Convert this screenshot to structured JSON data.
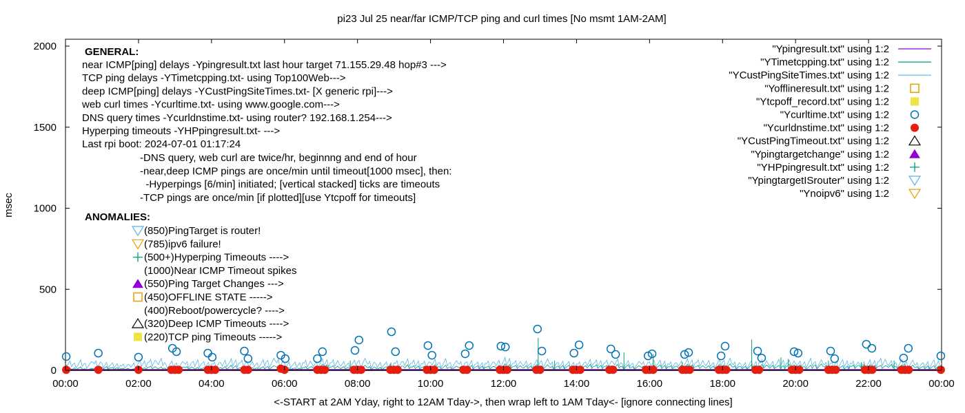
{
  "chart_data": {
    "type": "line",
    "title": "pi23 Jul 25  near/far ICMP/TCP ping and curl times [No msmt 1AM-2AM]",
    "xlabel": "<-START at 2AM Yday, right to 12AM Tday->, then wrap left to 1AM Tday<- [ignore connecting lines]",
    "ylabel": "msec",
    "xlim_hours": [
      0,
      24
    ],
    "ylim": [
      0,
      2050
    ],
    "x_ticks": [
      "00:00",
      "02:00",
      "04:00",
      "06:00",
      "08:00",
      "10:00",
      "12:00",
      "14:00",
      "16:00",
      "18:00",
      "20:00",
      "22:00",
      "00:00"
    ],
    "y_ticks": [
      "0",
      "500",
      "1000",
      "1500",
      "2000"
    ],
    "grid": false,
    "legend_placement": "top-right",
    "legend": [
      {
        "label": "\"Ypingresult.txt\" using 1:2",
        "style": "line",
        "color": "#9400d3"
      },
      {
        "label": "\"YTimetcpping.txt\" using 1:2",
        "style": "line",
        "color": "#009e73"
      },
      {
        "label": "\"YCustPingSiteTimes.txt\" using 1:2",
        "style": "line",
        "color": "#56b4e9"
      },
      {
        "label": "\"Yofflineresult.txt\" using 1:2",
        "style": "open-square",
        "color": "#e69f00"
      },
      {
        "label": "\"Ytcpoff_record.txt\" using 1:2",
        "style": "filled-square",
        "color": "#f0e442"
      },
      {
        "label": "\"Ycurltime.txt\" using 1:2",
        "style": "open-circle",
        "color": "#0072b2"
      },
      {
        "label": "\"Ycurldnstime.txt\" using 1:2",
        "style": "filled-circle",
        "color": "#e51e10"
      },
      {
        "label": "\"YCustPingTimeout.txt\" using 1:2",
        "style": "open-triangle",
        "color": "#000000"
      },
      {
        "label": "\"Ypingtargetchange\" using 1:2",
        "style": "filled-triangle",
        "color": "#9400d3"
      },
      {
        "label": "\"YHPpingresult.txt\" using 1:2",
        "style": "plus",
        "color": "#009e73"
      },
      {
        "label": "\"YpingtargetISrouter\" using 1:2",
        "style": "open-down-triangle",
        "color": "#56b4e9"
      },
      {
        "label": "\"Ynoipv6\" using 1:2",
        "style": "open-down-triangle",
        "color": "#e69f00"
      }
    ],
    "general_notes": {
      "heading": "GENERAL:",
      "lines": [
        "near ICMP[ping] delays -Ypingresult.txt last hour target 71.155.29.48 hop#3 --->",
        "TCP ping delays -YTimetcpping.txt- using Top100Web--->",
        "deep ICMP[ping] delays -YCustPingSiteTimes.txt- [X generic rpi]--->",
        "web curl times -Ycurltime.txt- using www.google.com--->",
        "DNS query times -Ycurldnstime.txt- using router? 192.168.1.254--->",
        "Hyperping timeouts -YHPpingresult.txt- --->",
        "Last rpi boot: 2024-07-01 01:17:24"
      ],
      "indented_lines": [
        "-DNS query, web curl are twice/hr, beginnng and end of hour",
        "-near,deep ICMP pings are once/min until timeout[1000 msec], then:",
        "  -Hyperpings [6/min] initiated; [vertical stacked] ticks are timeouts",
        "-TCP pings are once/min [if plotted][use Ytcpoff for timeouts]"
      ]
    },
    "anomalies": {
      "heading": "ANOMALIES:",
      "items": [
        {
          "text": "(850)PingTarget is router!",
          "symbol": "open-down-triangle",
          "color": "#56b4e9"
        },
        {
          "text": "(785)ipv6 failure!",
          "symbol": "open-down-triangle",
          "color": "#e69f00"
        },
        {
          "text": "(500+)Hyperping Timeouts ---->",
          "symbol": "plus",
          "color": "#009e73"
        },
        {
          "text": "(1000)Near ICMP Timeout spikes",
          "symbol": "none",
          "color": ""
        },
        {
          "text": "(550)Ping Target Changes --->",
          "symbol": "filled-triangle",
          "color": "#9400d3"
        },
        {
          "text": "(450)OFFLINE STATE ----->",
          "symbol": "open-square",
          "color": "#e69f00"
        },
        {
          "text": "(400)Reboot/powercycle? ---->",
          "symbol": "none",
          "color": ""
        },
        {
          "text": "(320)Deep ICMP Timeouts ---->",
          "symbol": "open-triangle",
          "color": "#000000"
        },
        {
          "text": "(220)TCP ping Timeouts ----->",
          "symbol": "filled-square",
          "color": "#f0e442"
        }
      ]
    },
    "series": {
      "curltime": {
        "x": [
          0.02,
          0.9,
          2.0,
          2.93,
          3.04,
          3.9,
          4.02,
          4.9,
          5.0,
          5.9,
          6.02,
          6.9,
          7.04,
          7.93,
          8.04,
          8.93,
          9.04,
          9.93,
          10.04,
          10.95,
          11.06,
          11.93,
          12.05,
          12.93,
          13.05,
          13.93,
          14.07,
          14.94,
          15.07,
          15.96,
          16.07,
          16.96,
          17.07,
          17.96,
          18.07,
          18.96,
          19.07,
          19.96,
          20.07,
          20.96,
          21.07,
          21.94,
          22.09,
          22.96,
          23.09,
          23.98
        ],
        "y": [
          85,
          106,
          81,
          136,
          115,
          106,
          81,
          119,
          72,
          93,
          72,
          72,
          115,
          123,
          187,
          238,
          115,
          153,
          93,
          102,
          153,
          149,
          144,
          255,
          119,
          106,
          157,
          132,
          98,
          89,
          102,
          98,
          110,
          89,
          149,
          119,
          76,
          115,
          106,
          119,
          72,
          161,
          136,
          76,
          136,
          89
        ]
      },
      "curldnstime": {
        "x": [
          0.02,
          0.9,
          2.0,
          2.9,
          3.0,
          3.1,
          3.9,
          4.0,
          4.1,
          4.9,
          5.0,
          5.9,
          6.0,
          6.9,
          7.0,
          7.1,
          7.9,
          8.0,
          8.1,
          8.9,
          9.0,
          9.1,
          9.9,
          10.0,
          10.1,
          10.9,
          11.0,
          11.9,
          12.0,
          12.1,
          12.9,
          13.0,
          13.9,
          14.0,
          14.1,
          14.9,
          15.0,
          15.9,
          16.0,
          16.1,
          16.9,
          17.0,
          17.1,
          17.9,
          18.0,
          18.1,
          18.9,
          19.0,
          19.9,
          20.0,
          20.1,
          20.9,
          21.0,
          21.1,
          21.9,
          22.0,
          22.1,
          22.9,
          23.0,
          23.1,
          23.98
        ],
        "y": [
          3,
          3,
          3,
          3,
          3,
          3,
          3,
          3,
          3,
          3,
          3,
          10,
          3,
          3,
          3,
          3,
          3,
          3,
          3,
          3,
          3,
          3,
          3,
          3,
          3,
          3,
          3,
          3,
          3,
          3,
          3,
          3,
          3,
          3,
          3,
          3,
          3,
          3,
          3,
          3,
          3,
          3,
          3,
          3,
          3,
          3,
          3,
          3,
          3,
          3,
          3,
          3,
          3,
          3,
          3,
          3,
          3,
          3,
          3,
          3,
          3
        ]
      },
      "custping_15min": [
        40,
        45,
        38,
        50,
        42,
        36,
        30,
        35,
        44,
        48,
        52,
        40,
        38,
        46,
        55,
        42,
        40,
        48,
        50,
        44,
        38,
        46,
        52,
        58,
        44,
        40,
        48,
        42,
        50,
        46,
        38,
        44,
        52,
        48,
        42,
        40,
        46,
        54,
        44,
        40,
        48,
        50,
        42,
        46,
        52,
        40,
        44,
        48,
        56,
        42,
        40,
        46,
        50,
        44,
        48,
        42,
        40,
        52,
        46,
        44,
        50,
        42,
        38,
        46,
        52,
        48,
        40,
        44,
        50,
        46,
        42,
        48,
        52,
        44,
        40,
        46,
        50,
        42,
        48,
        44,
        40,
        52,
        46,
        42,
        48,
        50,
        44,
        40,
        46,
        52,
        42,
        48,
        44,
        40,
        46,
        50,
        44
      ],
      "tcp_15min": [
        10,
        15,
        8,
        12,
        20,
        14,
        10,
        8,
        12,
        18,
        15,
        10,
        14,
        20,
        16,
        12,
        10,
        18,
        22,
        14,
        12,
        16,
        20,
        24,
        14,
        12,
        18,
        22,
        26,
        20,
        16,
        18,
        22,
        20,
        16,
        18,
        22,
        26,
        20,
        18,
        24,
        22,
        18,
        20,
        26,
        22,
        20,
        24,
        28,
        22,
        20,
        26,
        24,
        22,
        26,
        24,
        20,
        28,
        24,
        22,
        26,
        24,
        20,
        22,
        28,
        26,
        22,
        24,
        26,
        22,
        20,
        26,
        28,
        24,
        22,
        26,
        28,
        24,
        22,
        26,
        24,
        22,
        28,
        26,
        24,
        22,
        26,
        28,
        24,
        22,
        26,
        24,
        22,
        20,
        24,
        22,
        20
      ],
      "tcp_spikes": {
        "x": [
          7.8,
          8.9,
          12.95,
          13.4,
          15.3,
          16.1,
          16.9,
          18.8,
          19.6,
          19.8,
          20.9,
          21.8,
          22.7,
          23.0
        ],
        "y": [
          60,
          40,
          200,
          60,
          110,
          100,
          50,
          190,
          80,
          70,
          60,
          50,
          60,
          40
        ]
      },
      "pingresult_level": 4
    }
  }
}
